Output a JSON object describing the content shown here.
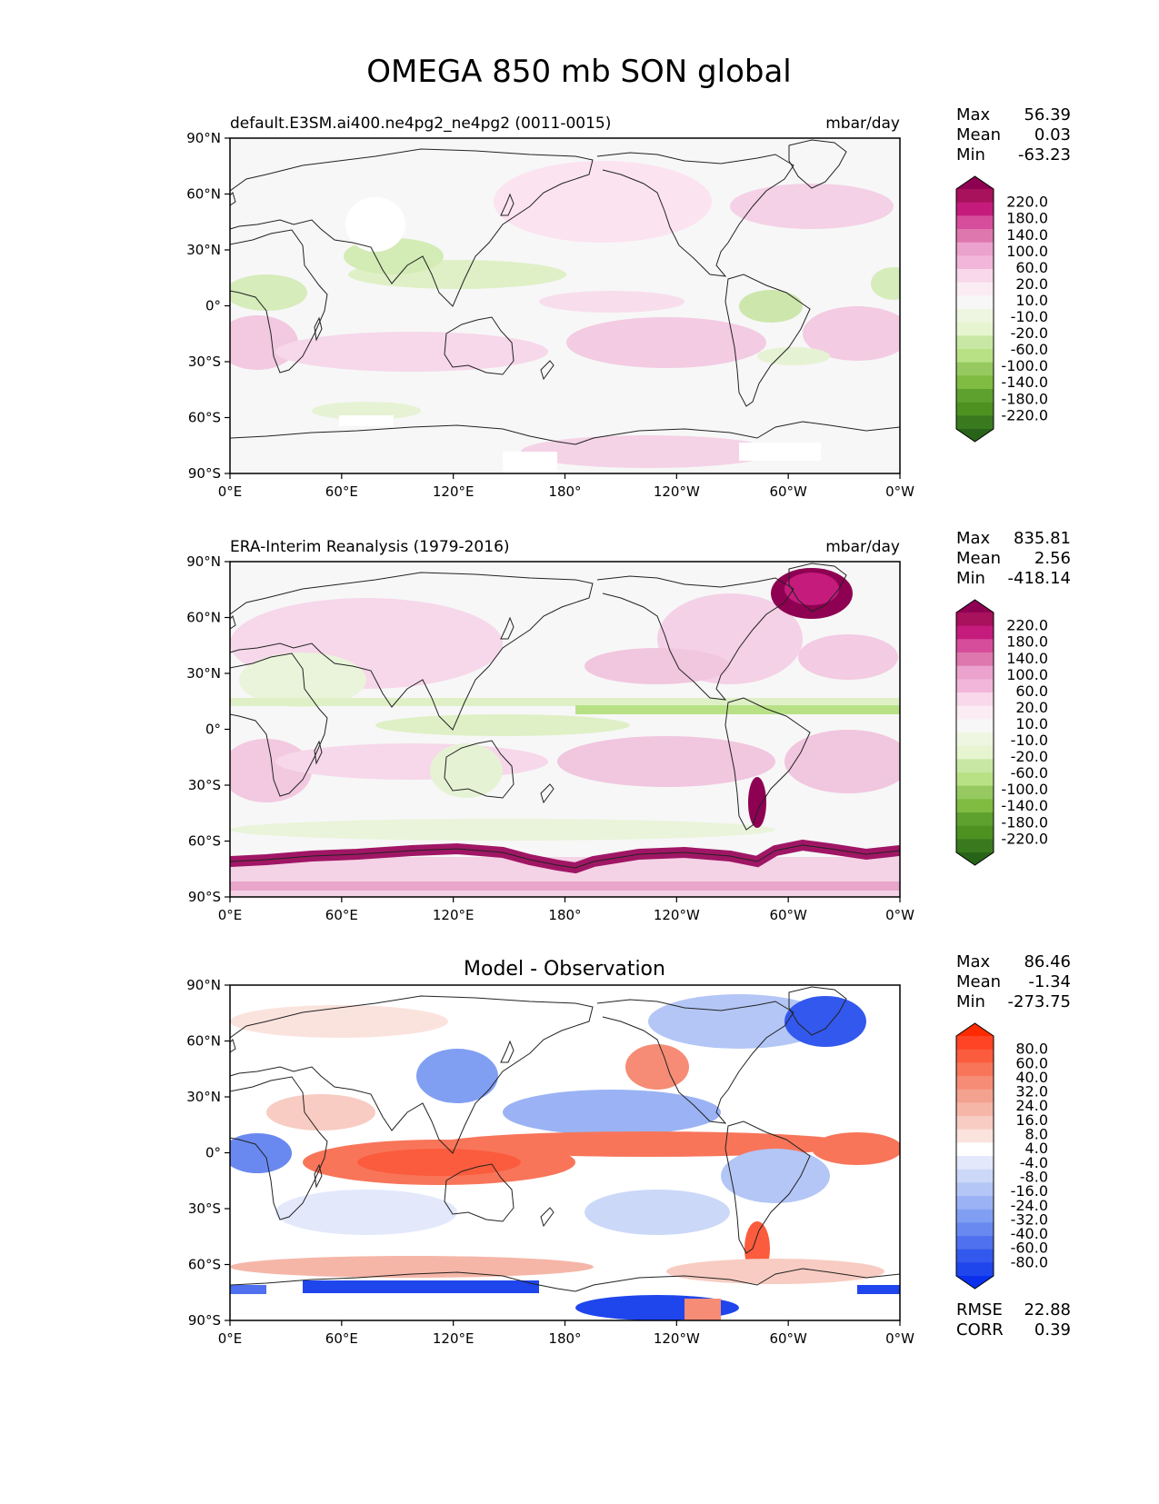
{
  "title": "OMEGA 850 mb SON global",
  "lon_ticks": [
    "0°E",
    "60°E",
    "120°E",
    "180°",
    "120°W",
    "60°W",
    "0°W"
  ],
  "lat_ticks": [
    "90°N",
    "60°N",
    "30°N",
    "0°",
    "30°S",
    "60°S",
    "90°S"
  ],
  "panels": [
    {
      "title_left": "default.E3SM.ai400.ne4pg2_ne4pg2 (0011-0015)",
      "title_right": "mbar/day",
      "stats": [
        {
          "label": "Max",
          "value": "56.39"
        },
        {
          "label": "Mean",
          "value": "0.03"
        },
        {
          "label": "Min",
          "value": "-63.23"
        }
      ],
      "colorbar_labels": [
        "220.0",
        "180.0",
        "140.0",
        "100.0",
        "60.0",
        "20.0",
        "10.0",
        "-10.0",
        "-20.0",
        "-60.0",
        "-100.0",
        "-140.0",
        "-180.0",
        "-220.0"
      ],
      "colorbar_colors": [
        "#8e0152",
        "#a8115c",
        "#c51b7d",
        "#d64d9b",
        "#de77ae",
        "#eba2cd",
        "#f1b6da",
        "#f8d8ea",
        "#fbecf4",
        "#f7f7f7",
        "#eef6e1",
        "#e6f5d0",
        "#c9e7a4",
        "#b8e186",
        "#96c95f",
        "#7fbc41",
        "#5ea12f",
        "#4d9221",
        "#3a7a1e",
        "#276419"
      ]
    },
    {
      "title_left": "ERA-Interim Reanalysis (1979-2016)",
      "title_right": "mbar/day",
      "stats": [
        {
          "label": "Max",
          "value": "835.81"
        },
        {
          "label": "Mean",
          "value": "2.56"
        },
        {
          "label": "Min",
          "value": "-418.14"
        }
      ],
      "colorbar_labels": [
        "220.0",
        "180.0",
        "140.0",
        "100.0",
        "60.0",
        "20.0",
        "10.0",
        "-10.0",
        "-20.0",
        "-60.0",
        "-100.0",
        "-140.0",
        "-180.0",
        "-220.0"
      ],
      "colorbar_colors": [
        "#8e0152",
        "#a8115c",
        "#c51b7d",
        "#d64d9b",
        "#de77ae",
        "#eba2cd",
        "#f1b6da",
        "#f8d8ea",
        "#fbecf4",
        "#f7f7f7",
        "#eef6e1",
        "#e6f5d0",
        "#c9e7a4",
        "#b8e186",
        "#96c95f",
        "#7fbc41",
        "#5ea12f",
        "#4d9221",
        "#3a7a1e",
        "#276419"
      ]
    },
    {
      "title_center": "Model - Observation",
      "stats": [
        {
          "label": "Max",
          "value": "86.46"
        },
        {
          "label": "Mean",
          "value": "-1.34"
        },
        {
          "label": "Min",
          "value": "-273.75"
        }
      ],
      "colorbar_labels": [
        "80.0",
        "60.0",
        "40.0",
        "32.0",
        "24.0",
        "16.0",
        "8.0",
        "4.0",
        "-4.0",
        "-8.0",
        "-16.0",
        "-24.0",
        "-32.0",
        "-40.0",
        "-60.0",
        "-80.0"
      ],
      "colorbar_colors": [
        "#ff2a00",
        "#fe4424",
        "#fb5c3d",
        "#f8755a",
        "#f68c75",
        "#f4a18f",
        "#f5b6a8",
        "#f8ccc2",
        "#fbe3dd",
        "#ffffff",
        "#e3e9fb",
        "#ccd8f8",
        "#b3c6f6",
        "#9bb3f4",
        "#819ff2",
        "#6989f0",
        "#4f70ef",
        "#3358ed",
        "#1f45ed",
        "#0a30ee"
      ],
      "extra_stats": [
        {
          "label": "RMSE",
          "value": "22.88"
        },
        {
          "label": "CORR",
          "value": "0.39"
        }
      ]
    }
  ]
}
